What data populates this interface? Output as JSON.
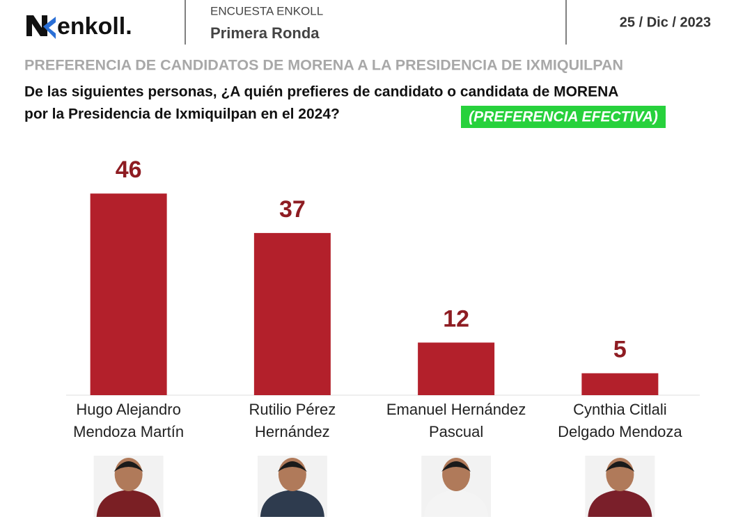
{
  "header": {
    "logo": "enkoll.",
    "survey": "ENCUESTA ENKOLL",
    "round": "Primera Ronda",
    "date": "25 / Dic / 2023"
  },
  "chart_data": {
    "type": "bar",
    "title": "PREFERENCIA DE CANDIDATOS DE MORENA A LA PRESIDENCIA DE IXMIQUILPAN",
    "subtitle": [
      "De las siguientes personas, ¿A quién prefieres de candidato o candidata de MORENA",
      "por la Presidencia de Ixmiquilpan en el 2024?"
    ],
    "annotation": "(PREFERENCIA EFECTIVA)",
    "categories": [
      [
        "Hugo Alejandro",
        "Mendoza Martín"
      ],
      [
        "Rutilio Pérez",
        "Hernández"
      ],
      [
        "Emanuel Hernández",
        "Pascual"
      ],
      [
        "Cynthia Citlali",
        "Delgado Mendoza"
      ]
    ],
    "values": [
      46,
      37,
      12,
      5
    ],
    "color": "#b3202b",
    "ylim": [
      0,
      50
    ]
  }
}
